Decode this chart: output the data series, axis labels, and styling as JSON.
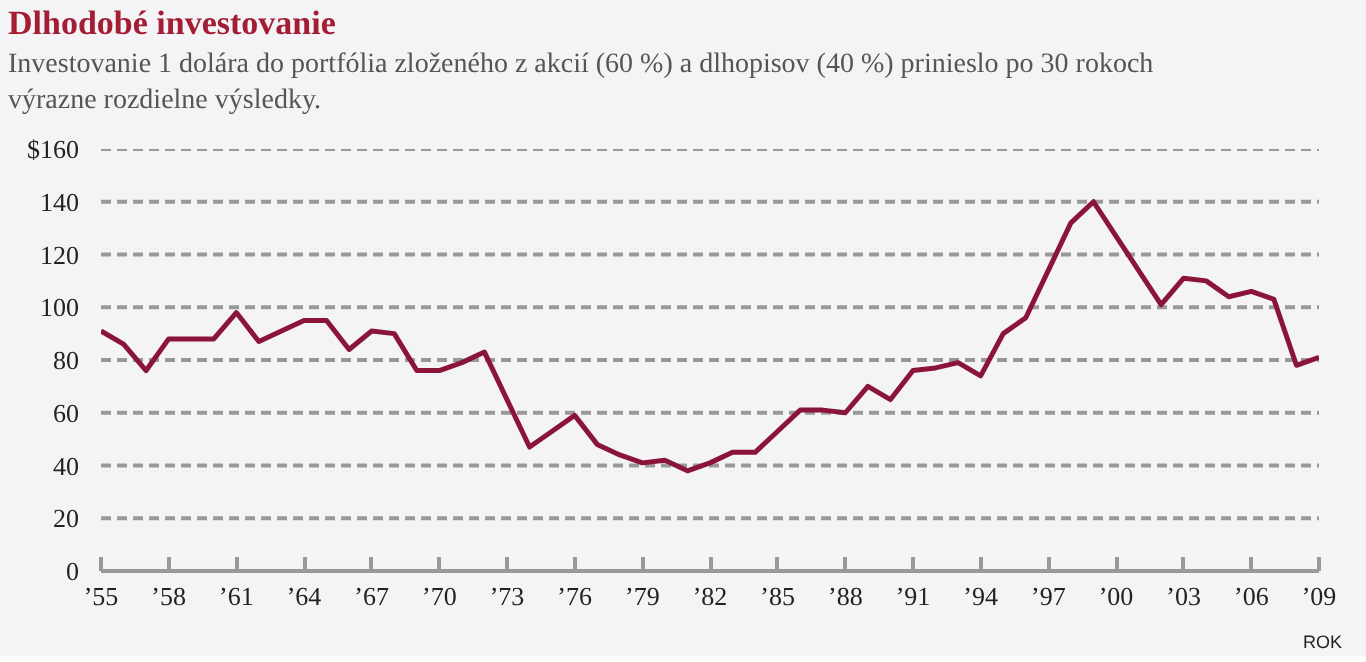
{
  "chart_data": {
    "type": "line",
    "title": "Dlhodobé investovanie",
    "subtitle": "Investovanie 1 dolára do portfólia zloženého z akcií (60 %) a dlhopisov (40 %) prinieslo po 30 rokoch výrazne rozdielne výsledky.",
    "xlabel": "ROK",
    "x": [
      1955,
      1956,
      1957,
      1958,
      1959,
      1960,
      1961,
      1962,
      1963,
      1964,
      1965,
      1966,
      1967,
      1968,
      1969,
      1970,
      1971,
      1972,
      1973,
      1974,
      1975,
      1976,
      1977,
      1978,
      1979,
      1980,
      1981,
      1982,
      1983,
      1984,
      1985,
      1986,
      1987,
      1988,
      1989,
      1990,
      1991,
      1992,
      1993,
      1994,
      1995,
      1996,
      1997,
      1998,
      1999,
      2000,
      2001,
      2002,
      2003,
      2004,
      2005,
      2006,
      2007,
      2008,
      2009
    ],
    "series": [
      {
        "color": "#8b1538",
        "values": [
          91,
          86,
          76,
          88,
          88,
          88,
          98,
          87,
          91,
          95,
          95,
          84,
          91,
          90,
          76,
          76,
          79,
          83,
          65,
          47,
          53,
          59,
          48,
          44,
          41,
          42,
          38,
          41,
          45,
          45,
          53,
          61,
          61,
          60,
          70,
          65,
          76,
          77,
          79,
          74,
          90,
          96,
          114,
          132,
          140,
          127,
          114,
          101,
          111,
          110,
          104,
          106,
          103,
          78,
          81
        ]
      }
    ],
    "xlim": [
      1955,
      2009
    ],
    "ylim": [
      0,
      160
    ],
    "xticks": [
      {
        "value": 1955,
        "label": "’55"
      },
      {
        "value": 1958,
        "label": "’58"
      },
      {
        "value": 1961,
        "label": "’61"
      },
      {
        "value": 1964,
        "label": "’64"
      },
      {
        "value": 1967,
        "label": "’67"
      },
      {
        "value": 1970,
        "label": "’70"
      },
      {
        "value": 1973,
        "label": "’73"
      },
      {
        "value": 1976,
        "label": "’76"
      },
      {
        "value": 1979,
        "label": "’79"
      },
      {
        "value": 1982,
        "label": "’82"
      },
      {
        "value": 1985,
        "label": "’85"
      },
      {
        "value": 1988,
        "label": "’88"
      },
      {
        "value": 1991,
        "label": "’91"
      },
      {
        "value": 1994,
        "label": "’94"
      },
      {
        "value": 1997,
        "label": "’97"
      },
      {
        "value": 2000,
        "label": "’00"
      },
      {
        "value": 2003,
        "label": "’03"
      },
      {
        "value": 2006,
        "label": "’06"
      },
      {
        "value": 2009,
        "label": "’09"
      }
    ],
    "yticks": [
      0,
      20,
      40,
      60,
      80,
      100,
      120,
      140,
      {
        "value": 160,
        "label": "$160"
      }
    ],
    "grid": "y",
    "marker": "none",
    "line_style": "solid"
  }
}
